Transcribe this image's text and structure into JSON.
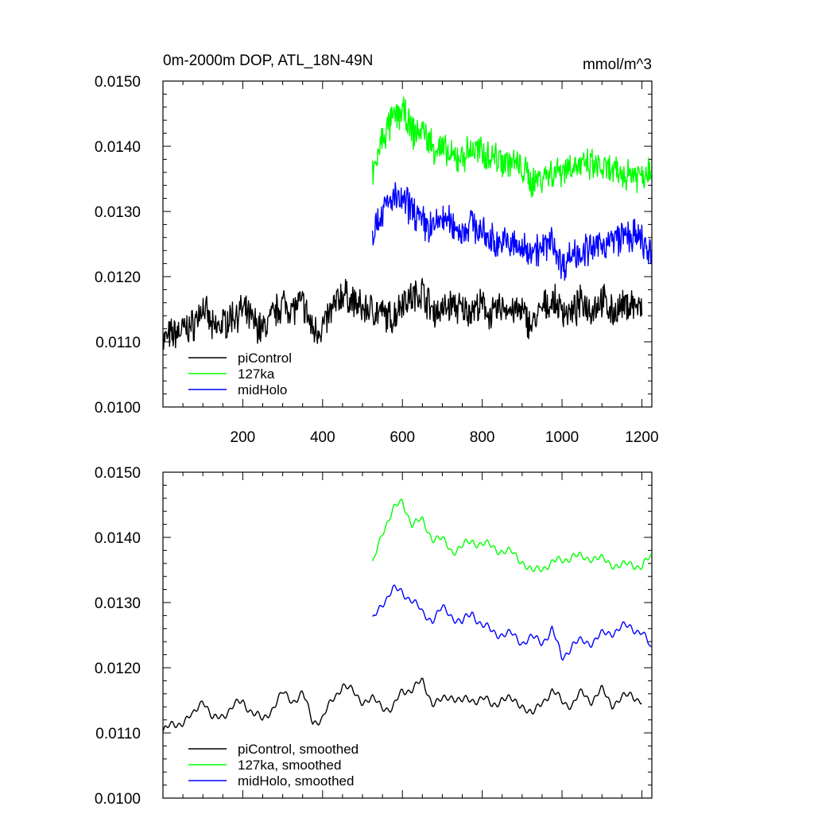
{
  "header": {
    "title": "0m-2000m DOP, ATL_18N-49N",
    "units": "mmol/m^3"
  },
  "colors": {
    "piControl": "#000000",
    "127ka": "#00ff00",
    "midHolo": "#0000ff"
  },
  "chart_data": [
    {
      "type": "line",
      "panel": "raw",
      "xlim": [
        0,
        1225
      ],
      "ylim": [
        0.01,
        0.015
      ],
      "xticks": [
        200,
        400,
        600,
        800,
        1000,
        1200
      ],
      "xtick_labels": [
        "200",
        "400",
        "600",
        "800",
        "1000",
        "1200"
      ],
      "yticks": [
        0.01,
        0.011,
        0.012,
        0.013,
        0.014,
        0.015
      ],
      "ytick_labels": [
        "0.0100",
        "0.0110",
        "0.0120",
        "0.0130",
        "0.0140",
        "0.0150"
      ],
      "legend_position": "bottom-left",
      "grid": false,
      "series": [
        {
          "name": "piControl",
          "color": "#000000",
          "x_start": 0,
          "x_end": 1200,
          "noisy": true,
          "points": [
            [
              0,
              0.01102
            ],
            [
              25,
              0.01112
            ],
            [
              50,
              0.01118
            ],
            [
              75,
              0.01125
            ],
            [
              100,
              0.01155
            ],
            [
              125,
              0.01118
            ],
            [
              150,
              0.01128
            ],
            [
              175,
              0.0114
            ],
            [
              200,
              0.01148
            ],
            [
              225,
              0.01132
            ],
            [
              250,
              0.01118
            ],
            [
              275,
              0.0114
            ],
            [
              300,
              0.0116
            ],
            [
              325,
              0.0115
            ],
            [
              350,
              0.0116
            ],
            [
              375,
              0.01118
            ],
            [
              400,
              0.01122
            ],
            [
              425,
              0.0115
            ],
            [
              450,
              0.01175
            ],
            [
              475,
              0.01162
            ],
            [
              500,
              0.0115
            ],
            [
              525,
              0.0115
            ],
            [
              550,
              0.01142
            ],
            [
              575,
              0.01135
            ],
            [
              600,
              0.01165
            ],
            [
              625,
              0.01168
            ],
            [
              650,
              0.01178
            ],
            [
              675,
              0.01148
            ],
            [
              700,
              0.01148
            ],
            [
              725,
              0.01158
            ],
            [
              750,
              0.01148
            ],
            [
              775,
              0.0115
            ],
            [
              800,
              0.01155
            ],
            [
              825,
              0.0114
            ],
            [
              850,
              0.01155
            ],
            [
              875,
              0.01148
            ],
            [
              900,
              0.01145
            ],
            [
              925,
              0.01125
            ],
            [
              950,
              0.0115
            ],
            [
              975,
              0.01162
            ],
            [
              1000,
              0.0115
            ],
            [
              1025,
              0.01142
            ],
            [
              1050,
              0.01162
            ],
            [
              1075,
              0.0115
            ],
            [
              1100,
              0.01165
            ],
            [
              1125,
              0.01145
            ],
            [
              1150,
              0.01152
            ],
            [
              1175,
              0.0116
            ],
            [
              1200,
              0.01148
            ]
          ]
        },
        {
          "name": "127ka",
          "color": "#00ff00",
          "x_start": 525,
          "x_end": 1225,
          "noisy": true,
          "points": [
            [
              525,
              0.01355
            ],
            [
              550,
              0.0141
            ],
            [
              575,
              0.0144
            ],
            [
              600,
              0.01455
            ],
            [
              625,
              0.0142
            ],
            [
              650,
              0.01425
            ],
            [
              675,
              0.014
            ],
            [
              700,
              0.01395
            ],
            [
              725,
              0.0138
            ],
            [
              750,
              0.01385
            ],
            [
              775,
              0.01395
            ],
            [
              800,
              0.0139
            ],
            [
              825,
              0.01385
            ],
            [
              850,
              0.0138
            ],
            [
              875,
              0.01375
            ],
            [
              900,
              0.01365
            ],
            [
              925,
              0.01345
            ],
            [
              950,
              0.01355
            ],
            [
              975,
              0.0136
            ],
            [
              1000,
              0.01365
            ],
            [
              1025,
              0.01372
            ],
            [
              1050,
              0.01368
            ],
            [
              1075,
              0.0137
            ],
            [
              1100,
              0.01365
            ],
            [
              1125,
              0.0136
            ],
            [
              1150,
              0.01355
            ],
            [
              1175,
              0.0136
            ],
            [
              1200,
              0.01355
            ],
            [
              1225,
              0.0137
            ]
          ]
        },
        {
          "name": "midHolo",
          "color": "#0000ff",
          "x_start": 525,
          "x_end": 1225,
          "noisy": true,
          "points": [
            [
              525,
              0.0127
            ],
            [
              550,
              0.013
            ],
            [
              575,
              0.0132
            ],
            [
              600,
              0.01315
            ],
            [
              625,
              0.01305
            ],
            [
              650,
              0.01282
            ],
            [
              675,
              0.01275
            ],
            [
              700,
              0.0129
            ],
            [
              725,
              0.0128
            ],
            [
              750,
              0.01268
            ],
            [
              775,
              0.01285
            ],
            [
              800,
              0.01265
            ],
            [
              825,
              0.01255
            ],
            [
              850,
              0.01252
            ],
            [
              875,
              0.0125
            ],
            [
              900,
              0.0124
            ],
            [
              925,
              0.01245
            ],
            [
              950,
              0.0124
            ],
            [
              975,
              0.01258
            ],
            [
              1000,
              0.01215
            ],
            [
              1025,
              0.01235
            ],
            [
              1050,
              0.0124
            ],
            [
              1075,
              0.0124
            ],
            [
              1100,
              0.0125
            ],
            [
              1125,
              0.01255
            ],
            [
              1150,
              0.01262
            ],
            [
              1175,
              0.01262
            ],
            [
              1200,
              0.01255
            ],
            [
              1225,
              0.01225
            ]
          ]
        }
      ]
    },
    {
      "type": "line",
      "panel": "smoothed",
      "xlim": [
        0,
        1225
      ],
      "ylim": [
        0.01,
        0.015
      ],
      "xticks": [
        200,
        400,
        600,
        800,
        1000,
        1200
      ],
      "xtick_labels": [],
      "yticks": [
        0.01,
        0.011,
        0.012,
        0.013,
        0.014,
        0.015
      ],
      "ytick_labels": [
        "0.0100",
        "0.0110",
        "0.0120",
        "0.0130",
        "0.0140",
        "0.0150"
      ],
      "legend_position": "bottom-left",
      "grid": false,
      "series": [
        {
          "name": "piControl, smoothed",
          "color": "#000000",
          "x_start": 0,
          "x_end": 1200,
          "noisy": false,
          "points": [
            [
              0,
              0.01102
            ],
            [
              25,
              0.01112
            ],
            [
              50,
              0.01118
            ],
            [
              75,
              0.01125
            ],
            [
              100,
              0.01155
            ],
            [
              125,
              0.01118
            ],
            [
              150,
              0.01128
            ],
            [
              175,
              0.0114
            ],
            [
              200,
              0.01148
            ],
            [
              225,
              0.01132
            ],
            [
              250,
              0.01118
            ],
            [
              275,
              0.0114
            ],
            [
              300,
              0.0116
            ],
            [
              325,
              0.0115
            ],
            [
              350,
              0.0116
            ],
            [
              375,
              0.01118
            ],
            [
              400,
              0.01122
            ],
            [
              425,
              0.0115
            ],
            [
              450,
              0.01175
            ],
            [
              475,
              0.01162
            ],
            [
              500,
              0.0115
            ],
            [
              525,
              0.0115
            ],
            [
              550,
              0.01142
            ],
            [
              575,
              0.01135
            ],
            [
              600,
              0.01165
            ],
            [
              625,
              0.01168
            ],
            [
              650,
              0.01178
            ],
            [
              675,
              0.01148
            ],
            [
              700,
              0.01148
            ],
            [
              725,
              0.01158
            ],
            [
              750,
              0.01148
            ],
            [
              775,
              0.0115
            ],
            [
              800,
              0.01155
            ],
            [
              825,
              0.0114
            ],
            [
              850,
              0.01155
            ],
            [
              875,
              0.01148
            ],
            [
              900,
              0.01145
            ],
            [
              925,
              0.01125
            ],
            [
              950,
              0.0115
            ],
            [
              975,
              0.01162
            ],
            [
              1000,
              0.0115
            ],
            [
              1025,
              0.01142
            ],
            [
              1050,
              0.01162
            ],
            [
              1075,
              0.0115
            ],
            [
              1100,
              0.01165
            ],
            [
              1125,
              0.01145
            ],
            [
              1150,
              0.01152
            ],
            [
              1175,
              0.0116
            ],
            [
              1200,
              0.01148
            ]
          ]
        },
        {
          "name": "127ka, smoothed",
          "color": "#00ff00",
          "x_start": 525,
          "x_end": 1225,
          "noisy": false,
          "points": [
            [
              525,
              0.01355
            ],
            [
              550,
              0.0141
            ],
            [
              575,
              0.0144
            ],
            [
              600,
              0.01455
            ],
            [
              625,
              0.0142
            ],
            [
              650,
              0.01425
            ],
            [
              675,
              0.014
            ],
            [
              700,
              0.01395
            ],
            [
              725,
              0.0138
            ],
            [
              750,
              0.01385
            ],
            [
              775,
              0.01395
            ],
            [
              800,
              0.0139
            ],
            [
              825,
              0.01385
            ],
            [
              850,
              0.0138
            ],
            [
              875,
              0.01375
            ],
            [
              900,
              0.01365
            ],
            [
              925,
              0.01345
            ],
            [
              950,
              0.01355
            ],
            [
              975,
              0.0136
            ],
            [
              1000,
              0.01365
            ],
            [
              1025,
              0.01372
            ],
            [
              1050,
              0.01368
            ],
            [
              1075,
              0.0137
            ],
            [
              1100,
              0.01365
            ],
            [
              1125,
              0.0136
            ],
            [
              1150,
              0.01355
            ],
            [
              1175,
              0.0136
            ],
            [
              1200,
              0.01355
            ],
            [
              1225,
              0.0137
            ]
          ]
        },
        {
          "name": "midHolo, smoothed",
          "color": "#0000ff",
          "x_start": 525,
          "x_end": 1225,
          "noisy": false,
          "points": [
            [
              525,
              0.0127
            ],
            [
              550,
              0.013
            ],
            [
              575,
              0.0132
            ],
            [
              600,
              0.01315
            ],
            [
              625,
              0.01305
            ],
            [
              650,
              0.01282
            ],
            [
              675,
              0.01275
            ],
            [
              700,
              0.0129
            ],
            [
              725,
              0.0128
            ],
            [
              750,
              0.01268
            ],
            [
              775,
              0.01285
            ],
            [
              800,
              0.01265
            ],
            [
              825,
              0.01255
            ],
            [
              850,
              0.01252
            ],
            [
              875,
              0.0125
            ],
            [
              900,
              0.0124
            ],
            [
              925,
              0.01245
            ],
            [
              950,
              0.0124
            ],
            [
              975,
              0.01258
            ],
            [
              1000,
              0.01215
            ],
            [
              1025,
              0.01235
            ],
            [
              1050,
              0.0124
            ],
            [
              1075,
              0.0124
            ],
            [
              1100,
              0.0125
            ],
            [
              1125,
              0.01255
            ],
            [
              1150,
              0.01262
            ],
            [
              1175,
              0.01262
            ],
            [
              1200,
              0.01255
            ],
            [
              1225,
              0.01225
            ]
          ]
        }
      ]
    }
  ]
}
